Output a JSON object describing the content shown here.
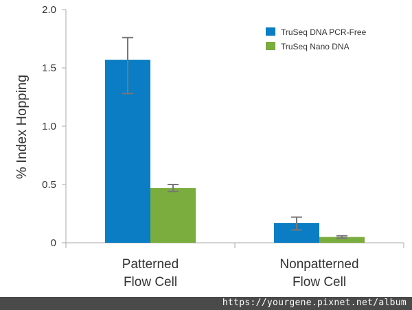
{
  "chart_data": {
    "type": "bar",
    "ylabel": "% Index Hopping",
    "ylim": [
      0,
      2.0
    ],
    "yticks": [
      "0",
      "0.5",
      "1.0",
      "1.5",
      "2.0"
    ],
    "categories": [
      {
        "line1": "Patterned",
        "line2": "Flow Cell"
      },
      {
        "line1": "Nonpatterned",
        "line2": "Flow Cell"
      }
    ],
    "series": [
      {
        "name": "TruSeq DNA PCR-Free",
        "color": "#0a7dc4",
        "values": [
          1.57,
          0.17
        ],
        "err_low": [
          1.28,
          0.11
        ],
        "err_high": [
          1.76,
          0.22
        ]
      },
      {
        "name": "TruSeq Nano DNA",
        "color": "#7aac3e",
        "values": [
          0.47,
          0.05
        ],
        "err_low": [
          0.44,
          0.04
        ],
        "err_high": [
          0.5,
          0.06
        ]
      }
    ],
    "legend_position": "top-right",
    "grid": false
  },
  "watermark": "https://yourgene.pixnet.net/album"
}
